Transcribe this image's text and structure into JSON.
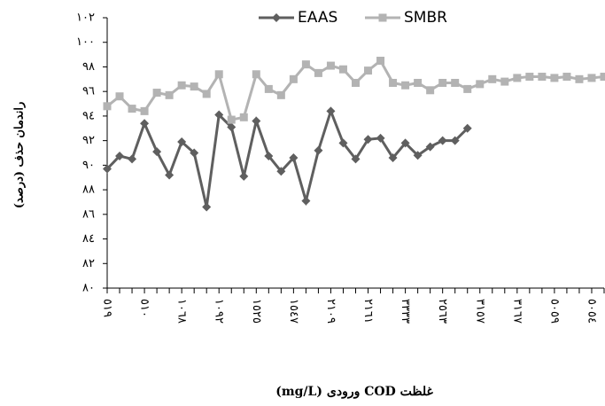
{
  "chart_data": {
    "type": "line",
    "y_label": "راندمان حذف (درصد)",
    "x_label": "غلظت COD ورودی (mg/L)",
    "categories": [
      "٥١٩",
      null,
      null,
      "٥١٠",
      null,
      null,
      "١٠٦٨",
      null,
      null,
      "١٠٩٢",
      null,
      null,
      "١٥٢٥",
      null,
      null,
      "١٥٤٧",
      null,
      null,
      "٢١٠٩",
      null,
      null,
      "٢١٦١",
      null,
      null,
      "٣٣٣٣",
      null,
      null,
      "٢٥٦٣",
      null,
      null,
      "٣١٥٧",
      null,
      null,
      "٣١٦٧",
      null,
      null,
      "٥٠٥٩",
      null,
      null,
      "٥٠٥٤",
      null
    ],
    "series": [
      {
        "name": "EAAS",
        "color": "#5f5f5f",
        "marker": "diamond",
        "values": [
          89.7,
          90.75,
          90.5,
          93.4,
          91.1,
          89.2,
          91.9,
          91.0,
          86.6,
          94.1,
          93.1,
          89.1,
          93.6,
          90.75,
          89.5,
          90.6,
          87.1,
          91.2,
          94.4,
          91.8,
          90.5,
          92.1,
          92.2,
          90.6,
          91.8,
          90.8,
          91.5,
          92.0,
          92.0,
          93.0,
          null,
          null,
          null,
          null,
          null,
          null,
          null,
          null,
          null,
          null,
          null
        ]
      },
      {
        "name": "SMBR",
        "color": "#b3b3b3",
        "marker": "square",
        "values": [
          94.8,
          95.6,
          94.6,
          94.4,
          95.9,
          95.7,
          96.5,
          96.4,
          95.8,
          97.4,
          93.7,
          93.9,
          97.4,
          96.2,
          95.7,
          97.0,
          98.2,
          97.5,
          98.1,
          97.8,
          96.7,
          97.7,
          98.5,
          96.7,
          96.5,
          96.7,
          96.1,
          96.7,
          96.7,
          96.2,
          96.6,
          97.0,
          96.8,
          97.1,
          97.2,
          97.2,
          97.1,
          97.2,
          97.0,
          97.1,
          97.2
        ]
      }
    ],
    "ylim": [
      80,
      102
    ],
    "yticks": [
      {
        "value": 80,
        "label": "٨٠"
      },
      {
        "value": 82,
        "label": "٨٢"
      },
      {
        "value": 84,
        "label": "٨٤"
      },
      {
        "value": 86,
        "label": "٨٦"
      },
      {
        "value": 88,
        "label": "٨٨"
      },
      {
        "value": 90,
        "label": "٩٠"
      },
      {
        "value": 92,
        "label": "٩٢"
      },
      {
        "value": 94,
        "label": "٩٤"
      },
      {
        "value": 96,
        "label": "٩٦"
      },
      {
        "value": 98,
        "label": "٩٨"
      },
      {
        "value": 100,
        "label": "١٠٠"
      },
      {
        "value": 102,
        "label": "١٠٢"
      }
    ],
    "grid": false,
    "legend": "top"
  }
}
